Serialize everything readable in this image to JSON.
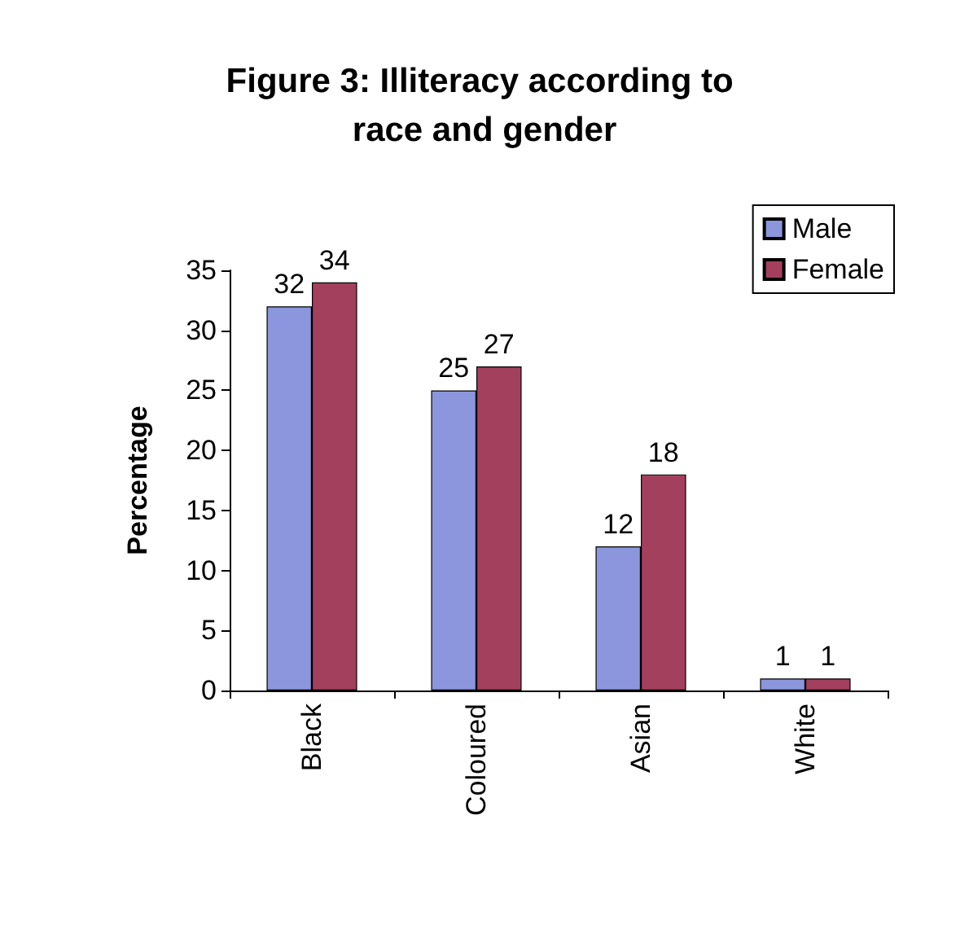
{
  "chart_data": {
    "type": "bar",
    "title": "Figure 3: Illiteracy according to race and gender",
    "ylabel": "Percentage",
    "categories": [
      "Black",
      "Coloured",
      "Asian",
      "White"
    ],
    "series": [
      {
        "name": "Male",
        "color": "#8c96dc",
        "values": [
          32,
          25,
          12,
          1
        ]
      },
      {
        "name": "Female",
        "color": "#a3405e",
        "values": [
          34,
          27,
          18,
          1
        ]
      }
    ],
    "ylim": [
      0,
      35
    ],
    "yticks": [
      0,
      5,
      10,
      15,
      20,
      25,
      30,
      35
    ],
    "grid": false,
    "legend": "top right",
    "data_labels": true
  }
}
